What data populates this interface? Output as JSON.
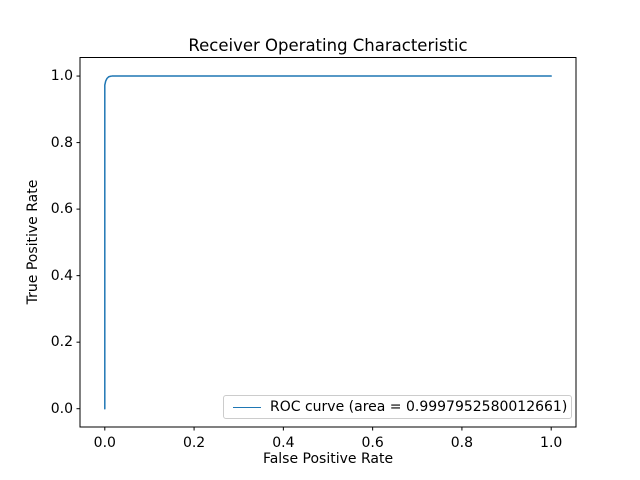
{
  "figure": {
    "background": "#ffffff",
    "text_color": "#000000",
    "frame_color": "#000000"
  },
  "chart_data": {
    "type": "line",
    "title": "Receiver Operating Characteristic",
    "xlabel": "False Positive Rate",
    "ylabel": "True Positive Rate",
    "x_ticks": [
      "0.0",
      "0.2",
      "0.4",
      "0.6",
      "0.8",
      "1.0"
    ],
    "y_ticks": [
      "0.0",
      "0.2",
      "0.4",
      "0.6",
      "0.8",
      "1.0"
    ],
    "xlim": [
      -0.05,
      1.05
    ],
    "ylim": [
      -0.05,
      1.05
    ],
    "grid": false,
    "legend": {
      "position": "lower right",
      "entries": [
        {
          "label": "ROC curve (area = 0.9997952580012661)",
          "color": "#1f77b4"
        }
      ]
    },
    "series": [
      {
        "name": "ROC curve (area = 0.9997952580012661)",
        "color": "#1f77b4",
        "line_width": 1.5,
        "x": [
          0.0,
          0.0,
          0.002,
          0.005,
          0.009,
          0.013,
          0.016,
          1.0
        ],
        "y": [
          0.0,
          0.973,
          0.985,
          0.993,
          0.998,
          0.9995,
          1.0,
          1.0
        ]
      }
    ],
    "area_under_curve": "0.9997952580012661"
  }
}
